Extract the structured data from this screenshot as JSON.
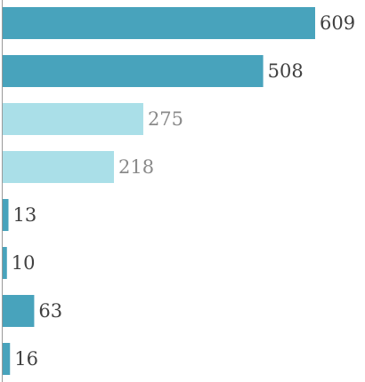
{
  "chart_data": {
    "type": "bar",
    "orientation": "horizontal",
    "title": "",
    "xlabel": "",
    "ylabel": "",
    "categories": [
      "",
      "",
      "",
      "",
      "",
      "",
      "",
      ""
    ],
    "values": [
      609,
      508,
      275,
      218,
      13,
      10,
      63,
      16
    ],
    "value_labels": [
      "609",
      "508",
      "275",
      "218",
      "13",
      "10",
      "63",
      "16"
    ],
    "bar_colors": [
      "#48a3bc",
      "#48a3bc",
      "#aadfe8",
      "#aadfe8",
      "#48a3bc",
      "#48a3bc",
      "#48a3bc",
      "#48a3bc"
    ],
    "label_colors": [
      "#404040",
      "#404040",
      "#8a8a8a",
      "#8a8a8a",
      "#404040",
      "#404040",
      "#404040",
      "#404040"
    ],
    "xlim": [
      0,
      609
    ],
    "grid": false,
    "legend": "none",
    "axis_color": "#9a9a9a"
  }
}
